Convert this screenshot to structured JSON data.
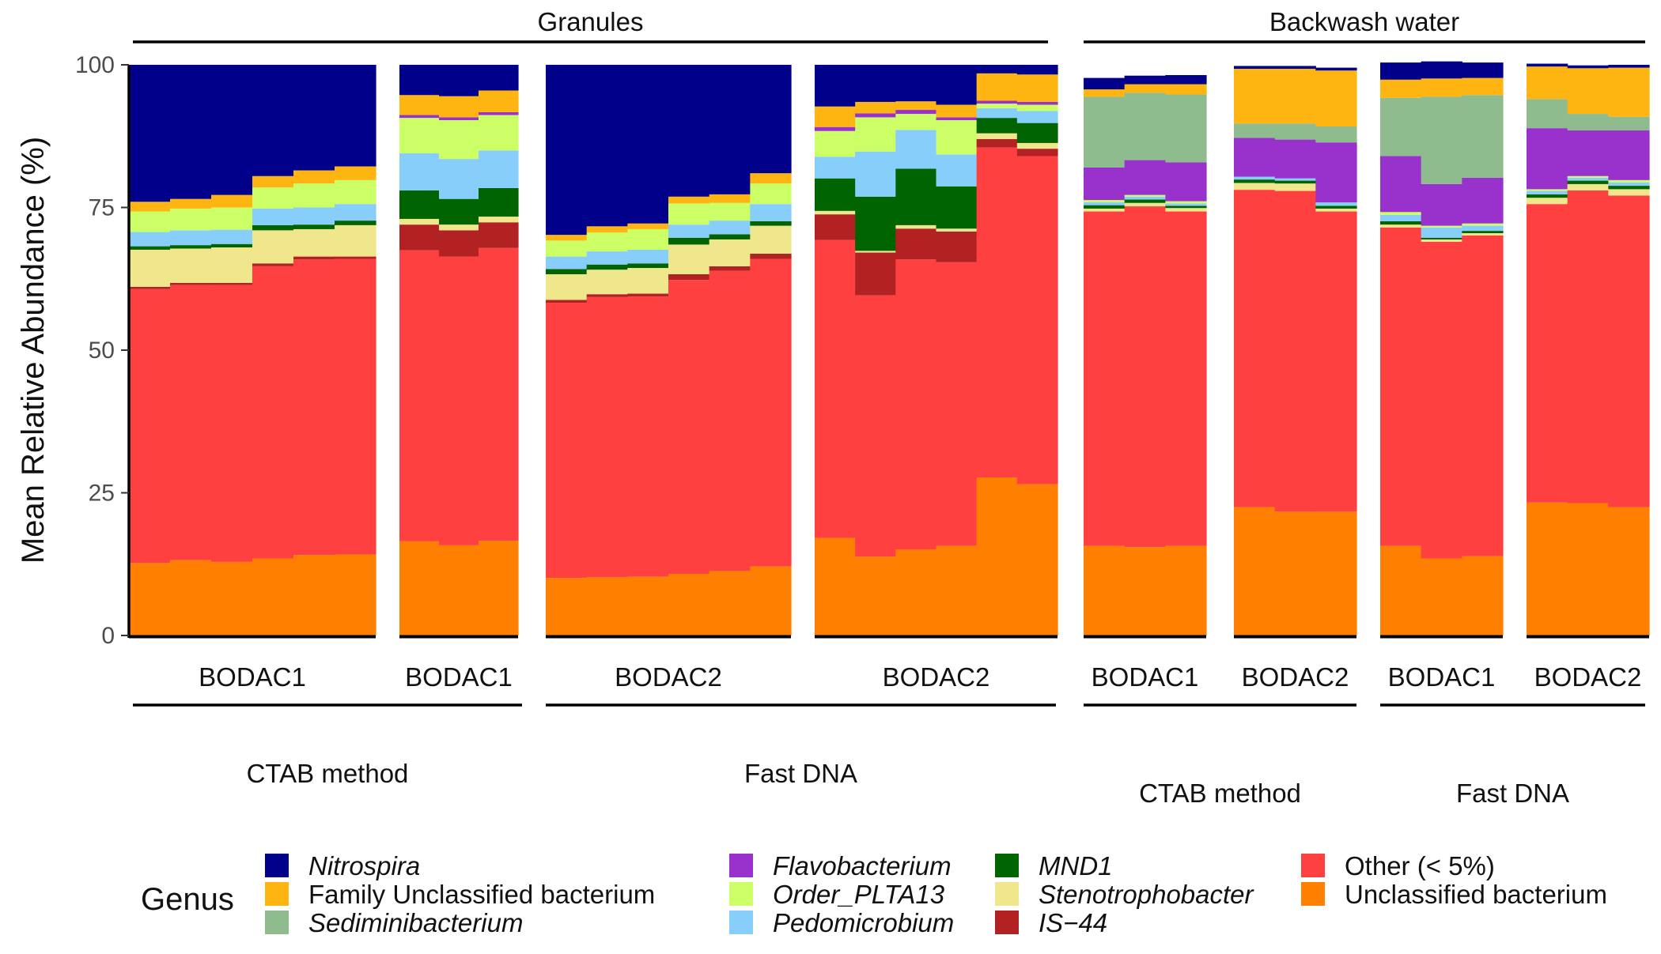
{
  "chart_data": {
    "type": "bar",
    "subtype": "stacked-100",
    "ylabel": "Mean Relative Abundance (%)",
    "ylim": [
      0,
      100
    ],
    "yticks": [
      0,
      25,
      50,
      75,
      100
    ],
    "grid": false,
    "sample_types": [
      "Granules",
      "Backwash water"
    ],
    "methods": [
      "CTAB method",
      "Fast DNA",
      "CTAB method",
      "Fast DNA"
    ],
    "reactors": [
      "BODAC1",
      "BODAC2",
      "BODAC1",
      "BODAC2",
      "BODAC1",
      "BODAC2",
      "BODAC1",
      "BODAC2"
    ],
    "legend": {
      "title": "Genus",
      "position": "bottom",
      "entries": [
        {
          "label": "Nitrospira",
          "color": "#00008B",
          "italic": true
        },
        {
          "label": "Family Unclassified bacterium",
          "color": "#FFB511",
          "italic": false
        },
        {
          "label": "Sediminibacterium",
          "color": "#8FBC8F",
          "italic": true
        },
        {
          "label": "Flavobacterium",
          "color": "#9932CC",
          "italic": true
        },
        {
          "label": "Order_PLTA13",
          "color": "#CCFF66",
          "italic": true
        },
        {
          "label": "Pedomicrobium",
          "color": "#87CEFA",
          "italic": true
        },
        {
          "label": "MND1",
          "color": "#006400",
          "italic": true
        },
        {
          "label": "Stenotrophobacter",
          "color": "#F0E68C",
          "italic": true
        },
        {
          "label": "IS−44",
          "color": "#B22222",
          "italic": true
        },
        {
          "label": "Other (< 5%)",
          "color": "#FF4040",
          "italic": false
        },
        {
          "label": "Unclassified bacterium",
          "color": "#FF8000",
          "italic": false
        }
      ]
    },
    "stack_order_bottom_to_top": [
      "Unclassified bacterium",
      "Other (< 5%)",
      "IS−44",
      "Stenotrophobacter",
      "MND1",
      "Pedomicrobium",
      "Order_PLTA13",
      "Flavobacterium",
      "Sediminibacterium",
      "Family Unclassified bacterium",
      "Nitrospira"
    ],
    "panels": [
      {
        "sample_type": "Granules",
        "method": "CTAB method",
        "reactor": "BODAC1",
        "bars": [
          [
            12.7,
            48.0,
            0.4,
            6.5,
            0.6,
            2.5,
            3.6,
            0,
            0,
            1.7,
            24.0
          ],
          [
            13.2,
            48.2,
            0.4,
            6.0,
            0.6,
            2.6,
            3.8,
            0,
            0,
            1.7,
            23.5
          ],
          [
            12.9,
            48.5,
            0.4,
            6.2,
            0.6,
            2.5,
            3.9,
            0,
            0,
            2.2,
            22.8
          ],
          [
            13.5,
            51.2,
            0.5,
            5.8,
            0.9,
            2.9,
            3.7,
            0,
            0,
            2.0,
            19.5
          ],
          [
            14.1,
            51.8,
            0.5,
            4.8,
            0.8,
            3.0,
            4.2,
            0,
            0,
            2.3,
            18.5
          ],
          [
            14.2,
            51.8,
            0.4,
            5.5,
            0.8,
            2.9,
            4.2,
            0,
            0,
            2.4,
            17.8
          ]
        ]
      },
      {
        "sample_type": "Granules",
        "method": "Fast DNA",
        "reactor": "BODAC1",
        "bars": [
          [
            10.1,
            48.2,
            0.5,
            4.5,
            0.9,
            2.2,
            2.8,
            0,
            0,
            1.0,
            29.8
          ],
          [
            10.2,
            49.1,
            0.5,
            4.3,
            0.9,
            2.3,
            3.3,
            0,
            0,
            1.1,
            28.3
          ],
          [
            10.3,
            49.1,
            0.5,
            4.5,
            0.8,
            2.4,
            3.6,
            0,
            0,
            1.0,
            27.8
          ],
          [
            10.8,
            51.5,
            1.0,
            5.2,
            1.2,
            2.3,
            3.7,
            0,
            0,
            1.2,
            23.1
          ],
          [
            11.3,
            52.6,
            0.8,
            4.7,
            0.9,
            2.4,
            3.1,
            0,
            0,
            1.5,
            22.7
          ],
          [
            12.1,
            53.9,
            0.9,
            4.9,
            0.8,
            3.0,
            3.6,
            0,
            0,
            1.8,
            19.0
          ]
        ]
      },
      {
        "sample_type": "Granules",
        "method": "CTAB method",
        "reactor": "BODAC2",
        "bars": [
          [
            16.5,
            51.0,
            4.5,
            1.0,
            5.0,
            6.5,
            6.2,
            0.5,
            0,
            3.5,
            5.3
          ],
          [
            15.8,
            50.6,
            4.6,
            1.0,
            4.5,
            7.0,
            6.8,
            0.5,
            0,
            3.7,
            5.5
          ],
          [
            16.6,
            51.3,
            4.5,
            1.0,
            5.0,
            6.6,
            6.2,
            0.5,
            0,
            3.8,
            4.5
          ]
        ]
      },
      {
        "sample_type": "Granules",
        "method": "Fast DNA",
        "reactor": "BODAC2",
        "bars": [
          [
            17.1,
            52.2,
            4.5,
            0.6,
            5.7,
            3.8,
            4.5,
            0.7,
            0,
            3.6,
            7.3
          ],
          [
            13.8,
            45.8,
            7.5,
            0.3,
            9.5,
            7.9,
            6.0,
            0.7,
            0,
            2.0,
            6.5
          ],
          [
            15.1,
            50.8,
            5.4,
            0.6,
            9.9,
            6.8,
            2.8,
            0.7,
            0,
            1.5,
            6.4
          ],
          [
            15.7,
            49.7,
            5.4,
            0.5,
            7.4,
            5.6,
            6.0,
            0.5,
            0,
            2.2,
            7.0
          ],
          [
            27.7,
            57.8,
            1.5,
            1.0,
            2.7,
            1.7,
            0.8,
            0.5,
            0,
            4.8,
            1.5
          ],
          [
            26.5,
            57.5,
            1.3,
            1.0,
            3.5,
            2.1,
            1.1,
            0.5,
            0,
            4.8,
            1.7
          ]
        ]
      },
      {
        "sample_type": "Backwash water",
        "method": "CTAB method",
        "reactor": "BODAC1",
        "bars": [
          [
            15.7,
            58.6,
            0,
            0.5,
            0.6,
            0.5,
            0.4,
            5.7,
            12.4,
            1.3,
            2.0
          ],
          [
            15.5,
            59.7,
            0,
            0.6,
            0.6,
            0.5,
            0.3,
            6.1,
            11.8,
            1.5,
            1.5
          ],
          [
            15.7,
            58.6,
            0,
            0.6,
            0.4,
            0.4,
            0.4,
            6.8,
            11.9,
            1.8,
            1.6
          ]
        ]
      },
      {
        "sample_type": "Backwash water",
        "method": "CTAB method",
        "reactor": "BODAC2",
        "bars": [
          [
            22.5,
            55.6,
            0,
            1.2,
            0.6,
            0.5,
            0,
            6.8,
            2.5,
            9.6,
            0.5
          ],
          [
            21.7,
            56.2,
            0,
            1.3,
            0.5,
            0.4,
            0,
            6.8,
            2.8,
            9.6,
            0.5
          ],
          [
            21.7,
            52.6,
            0,
            0.5,
            0.5,
            0.6,
            0,
            10.5,
            2.8,
            9.8,
            0.5
          ]
        ]
      },
      {
        "sample_type": "Backwash water",
        "method": "Fast DNA",
        "reactor": "BODAC1",
        "bars": [
          [
            15.7,
            55.8,
            0,
            0.5,
            0.6,
            1.1,
            0.5,
            9.8,
            10.2,
            3.2,
            3.0
          ],
          [
            13.5,
            55.5,
            0,
            0.4,
            0.3,
            1.8,
            0.3,
            7.3,
            15.3,
            3.2,
            3.0
          ],
          [
            13.9,
            56.2,
            0,
            0.4,
            0.4,
            0.9,
            0.4,
            8.0,
            14.5,
            3.0,
            2.7
          ]
        ]
      },
      {
        "sample_type": "Backwash water",
        "method": "Fast DNA",
        "reactor": "BODAC2",
        "bars": [
          [
            23.3,
            52.3,
            0,
            1.1,
            0.6,
            0.6,
            0.3,
            10.7,
            5.1,
            5.7,
            0.5
          ],
          [
            23.2,
            54.8,
            0,
            1.1,
            0.6,
            0.5,
            0.3,
            8.0,
            2.9,
            8.0,
            0.5
          ],
          [
            22.5,
            54.6,
            0,
            1.1,
            0.6,
            0.6,
            0.4,
            8.7,
            2.4,
            8.6,
            0.5
          ]
        ]
      }
    ]
  }
}
